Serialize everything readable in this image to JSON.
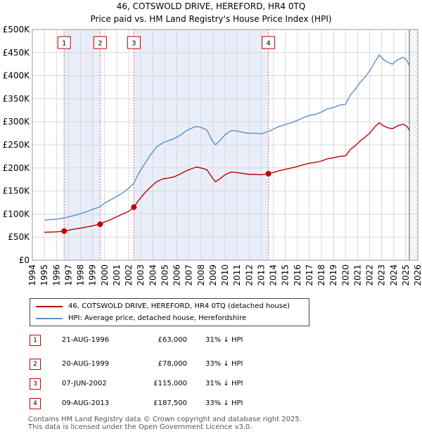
{
  "title": {
    "line1": "46, COTSWOLD DRIVE, HEREFORD, HR4 0TQ",
    "line2": "Price paid vs. HM Land Registry's House Price Index (HPI)"
  },
  "colors": {
    "property": "#c00000",
    "hpi": "#5b8fd0",
    "shade": "#e9eefa",
    "grid": "#d8d8d8",
    "marker_line": "#e06060"
  },
  "chart_data": {
    "type": "line",
    "title": "46, COTSWOLD DRIVE, HEREFORD, HR4 0TQ",
    "subtitle": "Price paid vs. HM Land Registry's House Price Index (HPI)",
    "xlabel": "",
    "ylabel": "",
    "xlim": [
      1994,
      2026
    ],
    "ylim": [
      0,
      500000
    ],
    "grid": true,
    "x_ticks": [
      "1994",
      "1995",
      "1996",
      "1997",
      "1998",
      "1999",
      "2000",
      "2001",
      "2002",
      "2003",
      "2004",
      "2005",
      "2006",
      "2007",
      "2008",
      "2009",
      "2010",
      "2011",
      "2012",
      "2013",
      "2014",
      "2015",
      "2016",
      "2017",
      "2018",
      "2019",
      "2020",
      "2021",
      "2022",
      "2023",
      "2024",
      "2025",
      "2026"
    ],
    "y_ticks": [
      {
        "value": 0,
        "label": "£0"
      },
      {
        "value": 50000,
        "label": "£50K"
      },
      {
        "value": 100000,
        "label": "£100K"
      },
      {
        "value": 150000,
        "label": "£150K"
      },
      {
        "value": 200000,
        "label": "£200K"
      },
      {
        "value": 250000,
        "label": "£250K"
      },
      {
        "value": 300000,
        "label": "£300K"
      },
      {
        "value": 350000,
        "label": "£350K"
      },
      {
        "value": 400000,
        "label": "£400K"
      },
      {
        "value": 450000,
        "label": "£450K"
      },
      {
        "value": 500000,
        "label": "£500K"
      }
    ],
    "shaded_periods": [
      [
        1996.64,
        1999.63
      ],
      [
        2002.43,
        2013.6
      ]
    ],
    "series": [
      {
        "name": "46, COTSWOLD DRIVE, HEREFORD, HR4 0TQ (detached house)",
        "color": "#c00000",
        "points": [
          [
            1995,
            60500
          ],
          [
            1995.5,
            61000
          ],
          [
            1996,
            61500
          ],
          [
            1996.64,
            63000
          ],
          [
            1997,
            65000
          ],
          [
            1997.5,
            67500
          ],
          [
            1998,
            69500
          ],
          [
            1998.5,
            72000
          ],
          [
            1999,
            74500
          ],
          [
            1999.63,
            78000
          ],
          [
            2000,
            83000
          ],
          [
            2000.5,
            88000
          ],
          [
            2001,
            94000
          ],
          [
            2001.5,
            100000
          ],
          [
            2002,
            106000
          ],
          [
            2002.43,
            115000
          ],
          [
            2002.8,
            129000
          ],
          [
            2003.3,
            145000
          ],
          [
            2003.8,
            158000
          ],
          [
            2004.3,
            170000
          ],
          [
            2004.8,
            176000
          ],
          [
            2005.3,
            178000
          ],
          [
            2005.8,
            181000
          ],
          [
            2006.3,
            187000
          ],
          [
            2006.8,
            194000
          ],
          [
            2007.3,
            199000
          ],
          [
            2007.6,
            202000
          ],
          [
            2008,
            200000
          ],
          [
            2008.5,
            196000
          ],
          [
            2008.9,
            180000
          ],
          [
            2009.2,
            170000
          ],
          [
            2009.6,
            177000
          ],
          [
            2010,
            185000
          ],
          [
            2010.5,
            191000
          ],
          [
            2011,
            190000
          ],
          [
            2011.5,
            188000
          ],
          [
            2012,
            186000
          ],
          [
            2012.5,
            186000
          ],
          [
            2013,
            185000
          ],
          [
            2013.6,
            187500
          ],
          [
            2014,
            190000
          ],
          [
            2014.5,
            194000
          ],
          [
            2015,
            197000
          ],
          [
            2015.5,
            200000
          ],
          [
            2016,
            203000
          ],
          [
            2016.5,
            207000
          ],
          [
            2017,
            210000
          ],
          [
            2017.5,
            212000
          ],
          [
            2018,
            215000
          ],
          [
            2018.5,
            220000
          ],
          [
            2019,
            222000
          ],
          [
            2019.5,
            225000
          ],
          [
            2020,
            226000
          ],
          [
            2020.4,
            240000
          ],
          [
            2020.8,
            248000
          ],
          [
            2021.2,
            258000
          ],
          [
            2021.6,
            266000
          ],
          [
            2022,
            275000
          ],
          [
            2022.4,
            288000
          ],
          [
            2022.8,
            298000
          ],
          [
            2023.1,
            292000
          ],
          [
            2023.5,
            287000
          ],
          [
            2023.9,
            285000
          ],
          [
            2024.3,
            291000
          ],
          [
            2024.8,
            295000
          ],
          [
            2025.1,
            290000
          ],
          [
            2025.3,
            282000
          ]
        ]
      },
      {
        "name": "HPI: Average price, detached house, Herefordshire",
        "color": "#5b8fd0",
        "points": [
          [
            1995,
            87000
          ],
          [
            1995.5,
            88000
          ],
          [
            1996,
            89000
          ],
          [
            1996.64,
            91500
          ],
          [
            1997,
            94000
          ],
          [
            1997.5,
            97000
          ],
          [
            1998,
            101000
          ],
          [
            1998.5,
            105000
          ],
          [
            1999,
            110000
          ],
          [
            1999.63,
            116000
          ],
          [
            2000,
            124000
          ],
          [
            2000.5,
            131000
          ],
          [
            2001,
            138000
          ],
          [
            2001.5,
            146000
          ],
          [
            2002,
            156000
          ],
          [
            2002.43,
            167000
          ],
          [
            2002.8,
            187000
          ],
          [
            2003.3,
            208000
          ],
          [
            2003.8,
            228000
          ],
          [
            2004.3,
            245000
          ],
          [
            2004.8,
            254000
          ],
          [
            2005.3,
            259000
          ],
          [
            2005.8,
            264000
          ],
          [
            2006.3,
            271000
          ],
          [
            2006.8,
            281000
          ],
          [
            2007.3,
            287000
          ],
          [
            2007.6,
            290000
          ],
          [
            2008,
            288000
          ],
          [
            2008.5,
            282000
          ],
          [
            2008.9,
            260000
          ],
          [
            2009.2,
            250000
          ],
          [
            2009.6,
            260000
          ],
          [
            2010,
            272000
          ],
          [
            2010.5,
            281000
          ],
          [
            2011,
            280000
          ],
          [
            2011.5,
            277000
          ],
          [
            2012,
            275000
          ],
          [
            2012.5,
            275000
          ],
          [
            2013,
            274000
          ],
          [
            2013.6,
            279000
          ],
          [
            2014,
            284000
          ],
          [
            2014.5,
            290000
          ],
          [
            2015,
            294000
          ],
          [
            2015.5,
            298000
          ],
          [
            2016,
            303000
          ],
          [
            2016.5,
            309000
          ],
          [
            2017,
            314000
          ],
          [
            2017.5,
            316000
          ],
          [
            2018,
            321000
          ],
          [
            2018.5,
            328000
          ],
          [
            2019,
            331000
          ],
          [
            2019.5,
            336000
          ],
          [
            2020,
            338000
          ],
          [
            2020.4,
            358000
          ],
          [
            2020.8,
            370000
          ],
          [
            2021.2,
            385000
          ],
          [
            2021.6,
            396000
          ],
          [
            2022,
            410000
          ],
          [
            2022.4,
            428000
          ],
          [
            2022.8,
            445000
          ],
          [
            2023.1,
            436000
          ],
          [
            2023.5,
            429000
          ],
          [
            2023.9,
            425000
          ],
          [
            2024.3,
            434000
          ],
          [
            2024.8,
            440000
          ],
          [
            2025.1,
            433000
          ],
          [
            2025.3,
            421000
          ]
        ]
      }
    ],
    "transactions": [
      {
        "label": "1",
        "x": 1996.64,
        "price": 63000
      },
      {
        "label": "2",
        "x": 1999.63,
        "price": 78000
      },
      {
        "label": "3",
        "x": 2002.43,
        "price": 115000
      },
      {
        "label": "4",
        "x": 2013.6,
        "price": 187500
      }
    ],
    "legend_position": "below"
  },
  "legend": {
    "property_label": "46, COTSWOLD DRIVE, HEREFORD, HR4 0TQ (detached house)",
    "hpi_label": "HPI: Average price, detached house, Herefordshire"
  },
  "transactions_table": [
    {
      "num": "1",
      "date": "21-AUG-1996",
      "price": "£63,000",
      "hpi": "31% ↓ HPI"
    },
    {
      "num": "2",
      "date": "20-AUG-1999",
      "price": "£78,000",
      "hpi": "33% ↓ HPI"
    },
    {
      "num": "3",
      "date": "07-JUN-2002",
      "price": "£115,000",
      "hpi": "31% ↓ HPI"
    },
    {
      "num": "4",
      "date": "09-AUG-2013",
      "price": "£187,500",
      "hpi": "33% ↓ HPI"
    }
  ],
  "footer": {
    "line1": "Contains HM Land Registry data © Crown copyright and database right 2025.",
    "line2": "This data is licensed under the Open Government Licence v3.0."
  }
}
